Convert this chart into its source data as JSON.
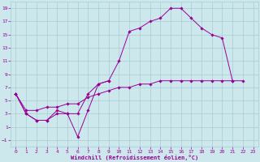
{
  "xlabel": "Windchill (Refroidissement éolien,°C)",
  "bg_color": "#cce8ec",
  "grid_color": "#aaccd4",
  "line_color": "#990099",
  "xlim": [
    -0.5,
    23.5
  ],
  "ylim": [
    -2,
    20
  ],
  "xticks": [
    0,
    1,
    2,
    3,
    4,
    5,
    6,
    7,
    8,
    9,
    10,
    11,
    12,
    13,
    14,
    15,
    16,
    17,
    18,
    19,
    20,
    21,
    22,
    23
  ],
  "yticks": [
    -1,
    1,
    3,
    5,
    7,
    9,
    11,
    13,
    15,
    17,
    19
  ],
  "series": [
    {
      "x": [
        0,
        1,
        2,
        3,
        4,
        5,
        6,
        7,
        8,
        9,
        10,
        11,
        12,
        13,
        14,
        15,
        16,
        17,
        18,
        19,
        20,
        21,
        22
      ],
      "y": [
        6,
        3,
        2,
        2,
        3,
        3,
        -0.5,
        3.5,
        7.5,
        8,
        11,
        15.5,
        16,
        17,
        17.5,
        19,
        19,
        17.5,
        16,
        15,
        14.5,
        8,
        8
      ]
    },
    {
      "x": [
        0,
        1,
        2,
        3,
        4,
        5,
        6,
        7,
        8,
        9
      ],
      "y": [
        6,
        3,
        2,
        2,
        3.5,
        3,
        3,
        6,
        7.5,
        8
      ]
    },
    {
      "x": [
        0,
        1,
        2,
        3,
        4,
        5,
        6,
        7,
        8,
        9,
        10,
        11,
        12,
        13,
        14,
        15,
        16,
        17,
        18,
        19,
        20,
        21
      ],
      "y": [
        6,
        3.5,
        3.5,
        4,
        4,
        4.5,
        4.5,
        5.5,
        6,
        6.5,
        7,
        7,
        7.5,
        7.5,
        8,
        8,
        8,
        8,
        8,
        8,
        8,
        8
      ]
    }
  ]
}
